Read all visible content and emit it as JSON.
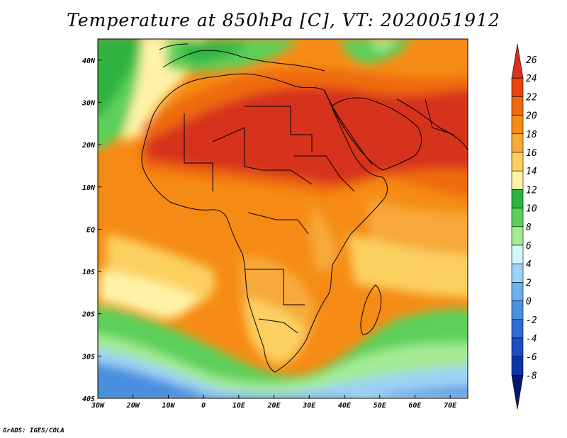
{
  "title": "Temperature at 850hPa [C], VT: 2020051912",
  "credit": "GrADS: IGES/COLA",
  "map": {
    "lon_range": [
      -30,
      75
    ],
    "lat_range": [
      -40,
      45
    ],
    "x_ticks": [
      "30W",
      "20W",
      "10W",
      "0",
      "10E",
      "20E",
      "30E",
      "40E",
      "50E",
      "60E",
      "70E"
    ],
    "y_ticks": [
      "40N",
      "30N",
      "20N",
      "10N",
      "EQ",
      "10S",
      "20S",
      "30S",
      "40S"
    ],
    "projection": "lat-lon (cylindrical equidistant)"
  },
  "colorbar": {
    "labels": [
      "26",
      "24",
      "22",
      "20",
      "18",
      "16",
      "14",
      "12",
      "10",
      "8",
      "6",
      "4",
      "2",
      "0",
      "-2",
      "-4",
      "-6",
      "-8"
    ],
    "colors": [
      "#d7301f",
      "#e8440f",
      "#ef6a0c",
      "#f58b14",
      "#f7a93a",
      "#fbd061",
      "#fff2a6",
      "#2db343",
      "#5cd05a",
      "#a5eb96",
      "#d4f5fa",
      "#9ed2f4",
      "#6cb0ec",
      "#4a8fe0",
      "#2e6bd6",
      "#1d4dc4",
      "#0f34a8",
      "#08156e"
    ]
  },
  "legend_stops": [
    {
      "value": -8,
      "color": "#08156e"
    },
    {
      "value": -6,
      "color": "#0f34a8"
    },
    {
      "value": -4,
      "color": "#1d4dc4"
    },
    {
      "value": -2,
      "color": "#2e6bd6"
    },
    {
      "value": 0,
      "color": "#4a8fe0"
    },
    {
      "value": 2,
      "color": "#6cb0ec"
    },
    {
      "value": 4,
      "color": "#9ed2f4"
    },
    {
      "value": 6,
      "color": "#d4f5fa"
    },
    {
      "value": 8,
      "color": "#a5eb96"
    },
    {
      "value": 10,
      "color": "#5cd05a"
    },
    {
      "value": 12,
      "color": "#2db343"
    },
    {
      "value": 14,
      "color": "#fff2a6"
    },
    {
      "value": 16,
      "color": "#fbd061"
    },
    {
      "value": 18,
      "color": "#f7a93a"
    },
    {
      "value": 20,
      "color": "#f58b14"
    },
    {
      "value": 22,
      "color": "#ef6a0c"
    },
    {
      "value": 24,
      "color": "#e8440f"
    },
    {
      "value": 26,
      "color": "#d7301f"
    }
  ]
}
